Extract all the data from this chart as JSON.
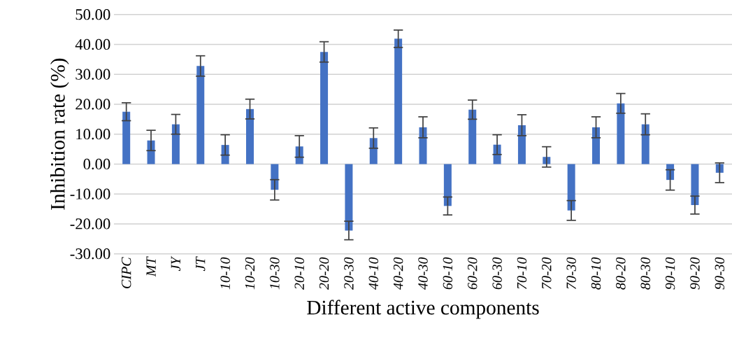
{
  "chart_data": {
    "type": "bar",
    "xlabel": "Different active components",
    "ylabel": "Inhibition rate (%)",
    "categories": [
      "CIPC",
      "MT",
      "JY",
      "JT",
      "10-10",
      "10-20",
      "10-30",
      "20-10",
      "20-20",
      "20-30",
      "40-10",
      "40-20",
      "40-30",
      "60-10",
      "60-20",
      "60-30",
      "70-10",
      "70-20",
      "70-30",
      "80-10",
      "80-20",
      "80-30",
      "90-10",
      "90-20",
      "90-30"
    ],
    "values": [
      17.5,
      7.9,
      13.3,
      32.8,
      6.4,
      18.4,
      -8.6,
      5.9,
      37.5,
      -22.2,
      8.7,
      41.9,
      12.3,
      -14.0,
      18.2,
      6.5,
      13.0,
      2.4,
      -15.5,
      12.3,
      20.3,
      13.3,
      -5.3,
      -13.7,
      -2.9
    ],
    "errors": [
      3.0,
      3.4,
      3.3,
      3.4,
      3.4,
      3.3,
      3.4,
      3.6,
      3.4,
      3.1,
      3.4,
      2.9,
      3.5,
      3.0,
      3.2,
      3.3,
      3.5,
      3.4,
      3.3,
      3.5,
      3.3,
      3.5,
      3.4,
      3.0,
      3.3
    ],
    "color": "#4472c4",
    "ylim": [
      -30,
      50
    ],
    "yticks": [
      {
        "value": -30,
        "label": "-30.00"
      },
      {
        "value": -20,
        "label": "-20.00"
      },
      {
        "value": -10,
        "label": "-10.00"
      },
      {
        "value": 0,
        "label": "0.00"
      },
      {
        "value": 10,
        "label": "10.00"
      },
      {
        "value": 20,
        "label": "20.00"
      },
      {
        "value": 30,
        "label": "30.00"
      },
      {
        "value": 40,
        "label": "40.00"
      },
      {
        "value": 50,
        "label": "50.00"
      }
    ],
    "grid": "y"
  }
}
